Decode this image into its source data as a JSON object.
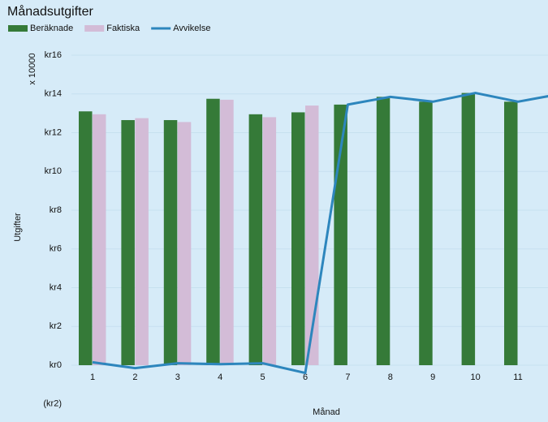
{
  "chart_data": {
    "type": "bar",
    "title": "Månadsutgifter",
    "ylabel": "Utgifter",
    "xlabel": "Månad",
    "y_unit_label": "x 10000",
    "categories": [
      "1",
      "2",
      "3",
      "4",
      "5",
      "6",
      "7",
      "8",
      "9",
      "10",
      "11",
      null
    ],
    "series": [
      {
        "name": "Beräknade",
        "color": "#357a38",
        "type": "bar",
        "values": [
          13.1,
          12.65,
          12.65,
          13.75,
          12.95,
          13.05,
          13.45,
          13.85,
          13.6,
          14.05,
          13.6,
          null
        ]
      },
      {
        "name": "Faktiska",
        "color": "#d3bcd7",
        "type": "bar",
        "values": [
          12.95,
          12.75,
          12.55,
          13.7,
          12.8,
          13.4,
          null,
          null,
          null,
          null,
          null,
          null
        ]
      },
      {
        "name": "Avvikelse",
        "color": "#2d86bd",
        "type": "line",
        "values": [
          0.15,
          -0.15,
          0.1,
          0.05,
          0.1,
          -0.4,
          13.45,
          13.85,
          13.6,
          14.05,
          13.6,
          14
        ]
      }
    ],
    "ylim": [
      -2,
      16
    ],
    "yticks": [
      {
        "value": -2,
        "label": "(kr2)"
      },
      {
        "value": 0,
        "label": "kr0"
      },
      {
        "value": 2,
        "label": "kr2"
      },
      {
        "value": 4,
        "label": "kr4"
      },
      {
        "value": 6,
        "label": "kr6"
      },
      {
        "value": 8,
        "label": "kr8"
      },
      {
        "value": 10,
        "label": "kr10"
      },
      {
        "value": 12,
        "label": "kr12"
      },
      {
        "value": 14,
        "label": "kr14"
      },
      {
        "value": 16,
        "label": "kr16"
      }
    ],
    "negative_tick_color": "#e00000",
    "grid": true
  }
}
